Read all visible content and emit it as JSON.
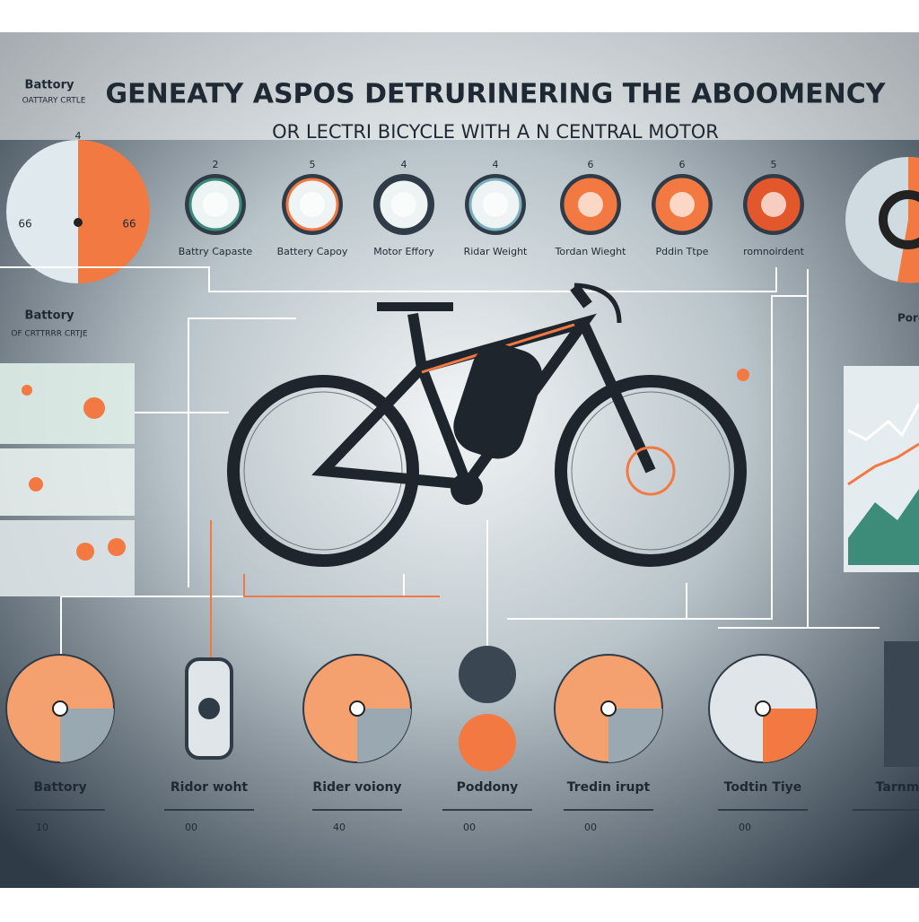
{
  "header": {
    "title": "GENEATY ASPOS DETRURINERING THE ABOOMENCY",
    "subtitle": "OR LECTRI BICYCLE WITH A N CENTRAL MOTOR"
  },
  "top_left": {
    "label": "Battory",
    "caption": "OATTARY CRTLE",
    "top_number": "4",
    "left_number": "66",
    "right_number": "66"
  },
  "factors": [
    {
      "number": "2",
      "label": "Battry Capaste"
    },
    {
      "number": "5",
      "label": "Battery Capoy"
    },
    {
      "number": "4",
      "label": "Motor Effory"
    },
    {
      "number": "4",
      "label": "Ridar Weight"
    },
    {
      "number": "6",
      "label": "Tordan Wieght"
    },
    {
      "number": "6",
      "label": "Pddin Ttpe"
    },
    {
      "number": "5",
      "label": "romnoirdent"
    }
  ],
  "side_left": {
    "label": "Battory",
    "caption": "OF CRTTRRR CRTJE"
  },
  "side_right": {
    "label": "Pordon"
  },
  "bottom": [
    {
      "label": "Battory",
      "number": "10"
    },
    {
      "label": "Ridor woht",
      "number": "00"
    },
    {
      "label": "Rider voiony",
      "number": "40"
    },
    {
      "label": "Poddony",
      "number": "00"
    },
    {
      "label": "Tredin irupt",
      "number": "00"
    },
    {
      "label": "Todtin Tiye",
      "number": "00"
    },
    {
      "label": "Tarnm",
      "number": ""
    }
  ]
}
